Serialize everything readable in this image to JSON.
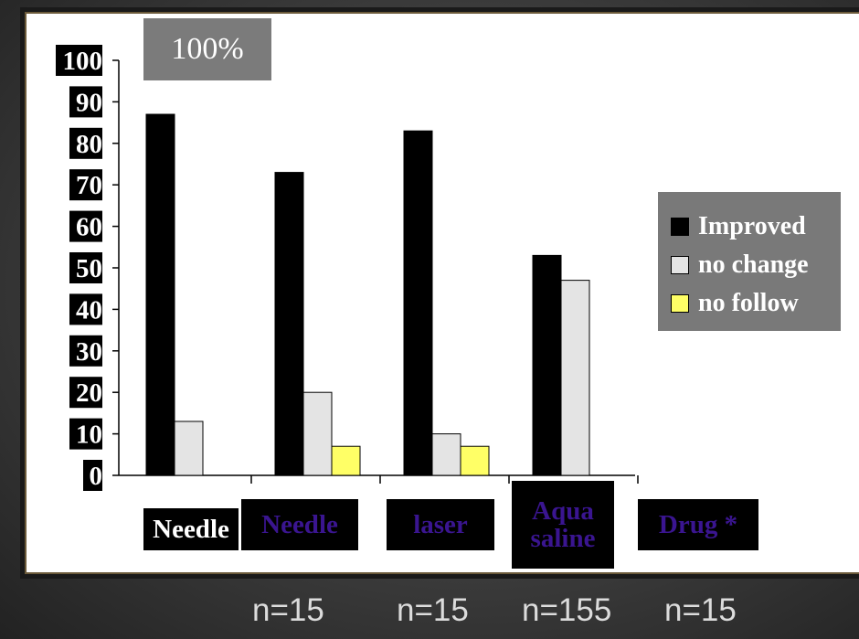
{
  "chart_data": {
    "type": "bar",
    "title": "100%",
    "categories": [
      "Needle",
      "Needle",
      "laser",
      "Aqua saline",
      "Drug *"
    ],
    "category_labels": [
      "Needle",
      "Needle",
      "laser",
      "Aqua\nsaline",
      "Drug *"
    ],
    "series": [
      {
        "name": "Improved",
        "color": "#000000",
        "values": [
          87,
          73,
          83,
          53,
          null
        ]
      },
      {
        "name": "no change",
        "color": "#e4e4e4",
        "values": [
          13,
          20,
          10,
          47,
          null
        ]
      },
      {
        "name": "no follow",
        "color": "#ffff66",
        "values": [
          null,
          7,
          7,
          null,
          null
        ]
      }
    ],
    "ylim": [
      0,
      100
    ],
    "yticks": [
      "0",
      "10",
      "20",
      "30",
      "40",
      "50",
      "60",
      "70",
      "80",
      "90",
      "100"
    ],
    "n_labels": [
      "n=15",
      "n=15",
      "n=155",
      "n=15"
    ],
    "legend_position": "right",
    "grid": false
  }
}
